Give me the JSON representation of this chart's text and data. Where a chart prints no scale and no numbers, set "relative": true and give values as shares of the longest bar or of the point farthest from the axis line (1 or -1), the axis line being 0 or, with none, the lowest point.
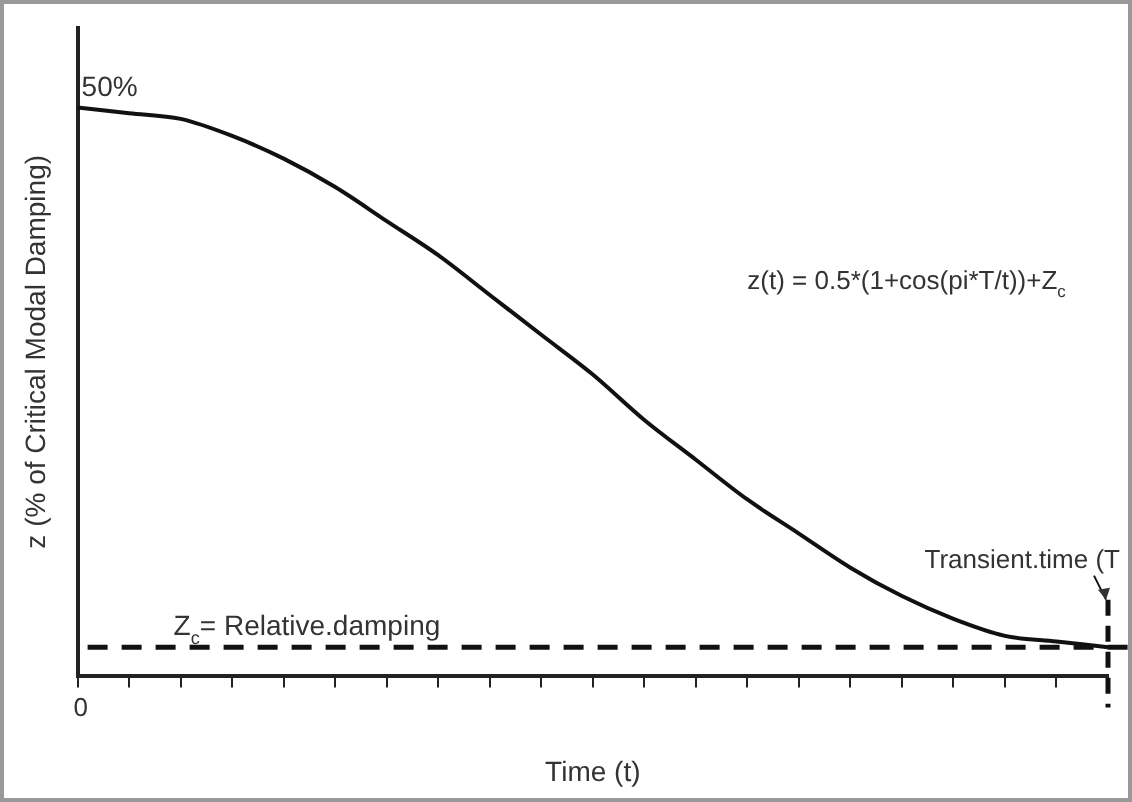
{
  "chart_data": {
    "type": "line",
    "relative": true,
    "xlabel": "Time (t)",
    "ylabel": "z (% of Critical Modal Damping)",
    "categories": [
      null,
      null,
      null,
      null,
      null,
      null,
      null,
      null,
      null,
      null,
      null,
      null,
      null,
      null,
      null,
      null,
      null,
      null,
      null,
      null,
      null
    ],
    "series": [
      {
        "color": "#111111",
        "values": [
          1,
          0.99,
          0.98,
          0.95,
          0.91,
          0.86,
          0.8,
          0.74,
          0.67,
          0.6,
          0.53,
          0.45,
          0.38,
          0.31,
          0.25,
          0.19,
          0.14,
          0.1,
          0.07,
          0.06,
          0.05
        ]
      }
    ],
    "ref_lines": [
      {
        "axis": "y",
        "value": 0.05,
        "label": "Z$_{c}$= Relative.damping",
        "line_style": "dashed"
      }
    ],
    "annotations": [
      {
        "text": "50%",
        "y": 1
      },
      "z(t) = 0.5*(1+cos(pi*T/t))+Z$_{c}$",
      "Transient.time (T",
      "0"
    ],
    "grid": false,
    "legend": false,
    "marker": "none",
    "line_style": "solid"
  }
}
